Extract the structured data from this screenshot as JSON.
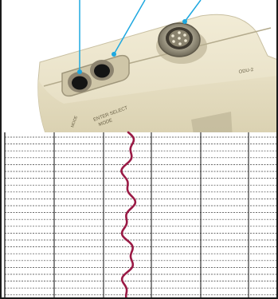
{
  "figure": {
    "callout_color": "#1ea8e0",
    "device_color": "#e9e2c9",
    "trace_color": "#9a1a45",
    "device_label": "ODU-2",
    "device_side_text": [
      "MODE",
      "ENTER SELECT"
    ]
  },
  "callouts": [
    {
      "name": "mic-jack-callout"
    },
    {
      "name": "headset-jack-callout"
    },
    {
      "name": "multipin-connector-callout"
    }
  ]
}
